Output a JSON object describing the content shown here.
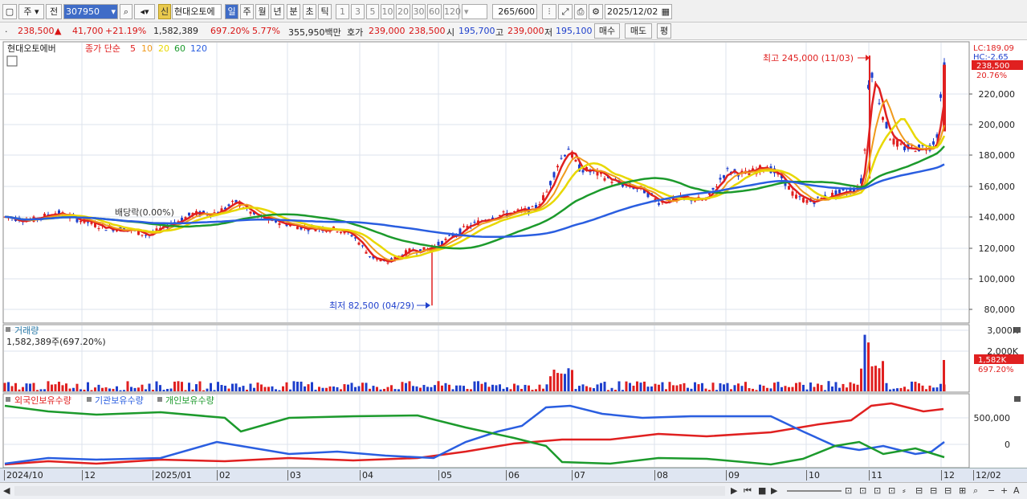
{
  "toolbar": {
    "tab_stock": "주",
    "tab_prev": "전",
    "code": "307950",
    "new_badge": "신",
    "name": "현대오토에",
    "periods": [
      "일",
      "주",
      "월",
      "년",
      "분",
      "초",
      "틱"
    ],
    "active_period": "일",
    "intervals": [
      "1",
      "3",
      "5",
      "10",
      "20",
      "30",
      "60",
      "120"
    ],
    "count": "265",
    "count_total": "/600",
    "date": "2025/12/02"
  },
  "info": {
    "price": "238,500",
    "arrow": "▲",
    "change": "41,700",
    "change_pct": "+21.19%",
    "volume": "1,582,389",
    "vol_pct": "697.20%",
    "turnover": "5.77%",
    "amount": "355,950백만",
    "bid_label": "호가",
    "bid": "239,000",
    "ask": "238,500",
    "open_label": "시",
    "open": "195,700",
    "high_label": "고",
    "high": "239,000",
    "low_label": "저",
    "low": "195,100",
    "buy": "매수",
    "sell": "매도",
    "avg": "평"
  },
  "price_panel": {
    "legend_name": "현대오토에버",
    "legend_label": "종가 단순",
    "ma_labels": [
      {
        "text": "5",
        "color": "#e02020"
      },
      {
        "text": "10",
        "color": "#f09a1c"
      },
      {
        "text": "20",
        "color": "#e8d800"
      },
      {
        "text": "60",
        "color": "#1c9a2c"
      },
      {
        "text": "120",
        "color": "#2a5ee0"
      }
    ],
    "lc": "LC:189.09",
    "hc": "HC:-2.65",
    "last_tag": "238,500",
    "last_pct": "20.76%",
    "high_annot": "최고 245,000 (11/03)",
    "low_annot": "최저 82,500 (04/29)",
    "dividend": "배당락(0.00%)",
    "y_ticks": [
      "220,000",
      "200,000",
      "180,000",
      "160,000",
      "140,000",
      "120,000",
      "100,000",
      "80,000"
    ]
  },
  "volume_panel": {
    "title": "거래량",
    "value": "1,582,389주(697.20%)",
    "y_ticks": [
      "3,000K",
      "2,000K"
    ],
    "last_tag": "1,582K",
    "last_pct": "697.20%"
  },
  "holdings_panel": {
    "legend": [
      "외국인보유수량",
      "기관보유수량",
      "개인보유수량"
    ],
    "y_ticks": [
      "500,000",
      "0"
    ]
  },
  "x_labels": [
    "2024/10",
    "12",
    "2025/01",
    "02",
    "03",
    "04",
    "05",
    "06",
    "07",
    "08",
    "09",
    "10",
    "11",
    "12",
    "12/02"
  ],
  "colors": {
    "up": "#e02020",
    "down": "#1e3fcc",
    "ma5": "#e02020",
    "ma10": "#f09a1c",
    "ma20": "#e8d800",
    "ma60": "#1c9a2c",
    "ma120": "#2a5ee0"
  }
}
